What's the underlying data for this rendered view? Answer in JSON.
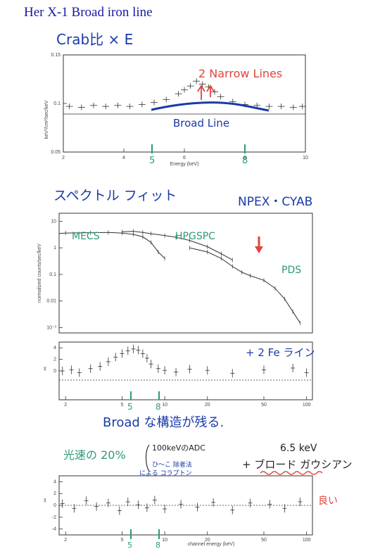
{
  "page": {
    "title": "Her X-1 Broad iron line"
  },
  "notes": {
    "crab_ratio": "Crab比 × E",
    "narrow_lines": "2 Narrow Lines",
    "broad_line": "Broad Line",
    "spectral_fit": "スペクトル フィット",
    "model": "NPEX・CYAB",
    "mecs": "MECS",
    "hpgspc": "HPGSPC",
    "pds": "PDS",
    "plus_2fe": "+ 2 Fe ライン",
    "broad_structure": "Broad な構造が残る.",
    "light_speed": "光速の 20%",
    "adc_note_1": "100keVのADC",
    "adc_note_2": "ひ〜こ 除者法",
    "adc_note_3": "による コラプトン",
    "gauss_energy": "6.5 keV",
    "plus_broad_gauss": "+ ブロード ガウシアン",
    "good": "良い",
    "marker_5": "5",
    "marker_8": "8",
    "marker_5b": "5",
    "marker_8b": "8",
    "marker_5c": "5",
    "marker_8c": "8"
  },
  "colors": {
    "title": "#1a1aa0",
    "pen_blue": "#1a3aa8",
    "pen_red": "#e0443c",
    "pen_green": "#2a9a7a",
    "data": "#333333"
  },
  "chart_data": [
    {
      "type": "scatter",
      "title": "",
      "xlabel": "Energy (keV)",
      "ylabel": "keV²/cm²/sec/keV",
      "x_ticks": [
        "2",
        "4",
        "6",
        "8",
        "10"
      ],
      "y_ticks": [
        "0.05",
        "0.1",
        "0.15"
      ],
      "xlim": [
        2,
        10
      ],
      "ylim": [
        0.05,
        0.15
      ],
      "series": [
        {
          "x": [
            2.2,
            2.6,
            3.0,
            3.4,
            3.8,
            4.2,
            4.6,
            5.0,
            5.4,
            5.8,
            6.0,
            6.2,
            6.4,
            6.6,
            6.8,
            7.0,
            7.2,
            7.6,
            8.0,
            8.4,
            8.8,
            9.2,
            9.6,
            9.9
          ],
          "y": [
            0.097,
            0.096,
            0.098,
            0.097,
            0.098,
            0.097,
            0.099,
            0.101,
            0.104,
            0.11,
            0.114,
            0.118,
            0.123,
            0.12,
            0.117,
            0.112,
            0.107,
            0.102,
            0.099,
            0.098,
            0.097,
            0.097,
            0.096,
            0.097
          ]
        }
      ]
    },
    {
      "type": "line",
      "title": "",
      "xlabel": "",
      "ylabel": "normalized counts/sec/keV",
      "y_ticks": [
        "10⁻³",
        "0.01",
        "0.1",
        "1",
        "10"
      ],
      "series": [
        {
          "x": [
            1.8,
            2,
            3,
            4,
            5,
            6,
            7,
            8,
            9,
            10
          ],
          "y": [
            3.5,
            3.6,
            3.7,
            3.8,
            3.6,
            3.2,
            2.6,
            1.6,
            0.7,
            0.4
          ]
        },
        {
          "x": [
            5,
            6,
            7,
            8,
            10,
            12,
            15,
            20,
            25,
            30
          ],
          "y": [
            4.0,
            4.2,
            3.8,
            3.4,
            2.9,
            2.5,
            1.9,
            1.1,
            0.6,
            0.35
          ]
        },
        {
          "x": [
            15,
            20,
            25,
            30,
            35,
            40,
            50,
            60,
            70,
            80,
            90
          ],
          "y": [
            1.0,
            0.7,
            0.4,
            0.2,
            0.12,
            0.09,
            0.06,
            0.03,
            0.012,
            0.004,
            0.0015
          ]
        }
      ]
    },
    {
      "type": "scatter",
      "title": "",
      "xlabel": "",
      "ylabel": "χ",
      "y_ticks": [
        "0",
        "2",
        "4"
      ],
      "x_ticks": [
        "2",
        "5",
        "10",
        "20",
        "50",
        "100"
      ],
      "series": [
        {
          "x": [
            1.9,
            2.2,
            2.5,
            3,
            3.5,
            4,
            4.5,
            5,
            5.5,
            6,
            6.5,
            7,
            7.5,
            8,
            9,
            10,
            12,
            15,
            20,
            30,
            50,
            80,
            100
          ],
          "y": [
            0,
            0.2,
            -0.3,
            0.4,
            0.8,
            1.6,
            2.4,
            3.0,
            3.5,
            3.8,
            3.6,
            3.0,
            2.2,
            1.2,
            0.4,
            0.1,
            -0.2,
            0.3,
            0.1,
            -0.4,
            0.2,
            0.5,
            -0.3
          ]
        }
      ]
    },
    {
      "type": "scatter",
      "title": "",
      "xlabel": "channel energy (keV)",
      "ylabel": "χ",
      "y_ticks": [
        "-4",
        "-2",
        "0",
        "2",
        "4"
      ],
      "x_ticks": [
        "2",
        "5",
        "10",
        "20",
        "50",
        "100"
      ],
      "series": [
        {
          "x": [
            1.9,
            2.3,
            2.8,
            3.3,
            4,
            4.8,
            5.5,
            6.5,
            7.5,
            8.5,
            10,
            13,
            17,
            22,
            30,
            40,
            55,
            70,
            90
          ],
          "y": [
            0.3,
            -0.5,
            0.8,
            -0.2,
            0.4,
            -0.9,
            0.6,
            0.1,
            -0.4,
            0.9,
            -0.6,
            0.2,
            -0.3,
            0.5,
            -0.8,
            0.4,
            0.2,
            -0.5,
            0.6
          ]
        }
      ]
    }
  ]
}
